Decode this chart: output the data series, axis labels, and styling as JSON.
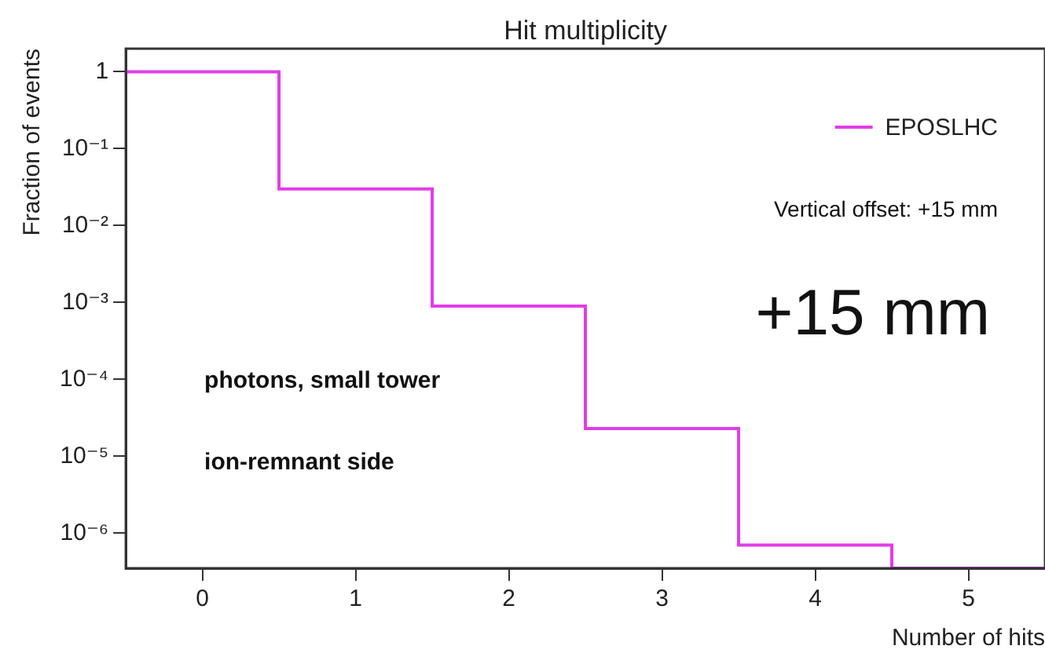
{
  "chart_data": {
    "type": "histogram",
    "title": "Hit multiplicity",
    "xlabel": "Number of hits",
    "ylabel": "Fraction of events",
    "bins": [
      -0.5,
      0.5,
      1.5,
      2.5,
      3.5,
      4.5,
      5.5
    ],
    "series": [
      {
        "name": "EPOSLHC",
        "color": "#e23ce8",
        "values": [
          1,
          0.03,
          0.0009,
          2.3e-05,
          7e-07,
          3.5e-07
        ]
      }
    ],
    "xlim": [
      -0.5,
      5.5
    ],
    "xticks": [
      0,
      1,
      2,
      3,
      4,
      5
    ],
    "ylim": [
      3.5e-07,
      2
    ],
    "yticks": [
      {
        "value": 1,
        "label": "1"
      },
      {
        "value": 0.1,
        "label": "10⁻¹"
      },
      {
        "value": 0.01,
        "label": "10⁻²"
      },
      {
        "value": 0.001,
        "label": "10⁻³"
      },
      {
        "value": 0.0001,
        "label": "10⁻⁴"
      },
      {
        "value": 1e-05,
        "label": "10⁻⁵"
      },
      {
        "value": 1e-06,
        "label": "10⁻⁶"
      }
    ],
    "log": "y",
    "grid": false,
    "legend": "top right",
    "annotations": [
      "Vertical offset: +15 mm",
      "+15 mm",
      "photons, small tower",
      "ion-remnant side"
    ]
  }
}
